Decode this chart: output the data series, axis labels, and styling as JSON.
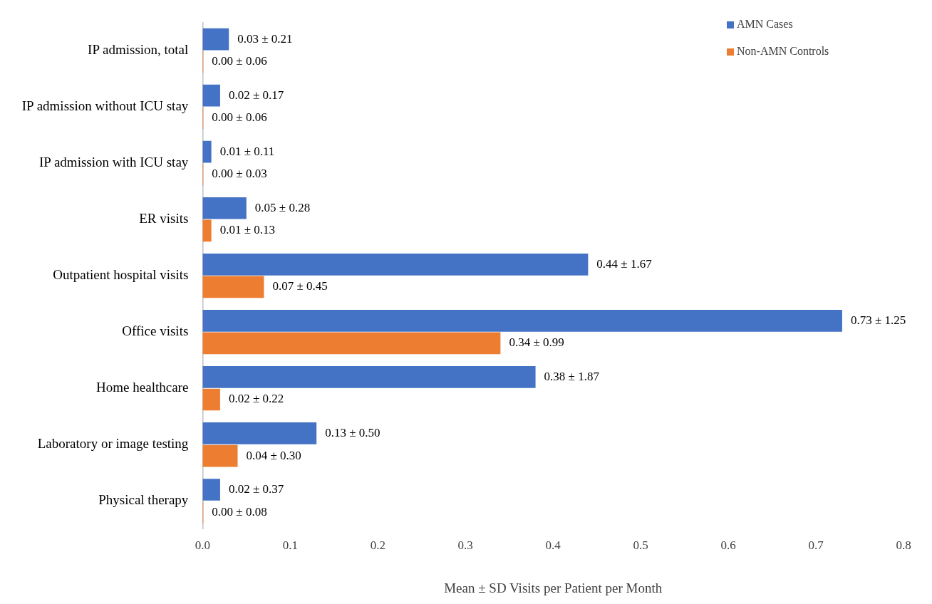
{
  "chart_data": {
    "type": "bar",
    "orientation": "horizontal",
    "xlabel": "Mean ± SD Visits per Patient per Month",
    "categories": [
      "IP admission, total",
      "IP admission without ICU stay",
      "IP admission with ICU stay",
      "ER visits",
      "Outpatient hospital visits",
      "Office visits",
      "Home healthcare",
      "Laboratory or image testing",
      "Physical therapy"
    ],
    "series": [
      {
        "name": "AMN Cases",
        "color": "#4472c4",
        "values": [
          0.03,
          0.02,
          0.01,
          0.05,
          0.44,
          0.73,
          0.38,
          0.13,
          0.02
        ],
        "value_labels": [
          "0.03 ± 0.21",
          "0.02 ± 0.17",
          "0.01 ± 0.11",
          "0.05 ± 0.28",
          "0.44 ± 1.67",
          "0.73 ± 1.25",
          "0.38 ± 1.87",
          "0.13 ± 0.50",
          "0.02 ± 0.37"
        ]
      },
      {
        "name": "Non-AMN Controls",
        "color": "#ed7d31",
        "values": [
          0,
          0,
          0,
          0.01,
          0.07,
          0.34,
          0.02,
          0.04,
          0
        ],
        "value_labels": [
          "0.00 ± 0.06",
          "0.00 ± 0.06",
          "0.00 ± 0.03",
          "0.01 ± 0.13",
          "0.07 ± 0.45",
          "0.34 ± 0.99",
          "0.02 ± 0.22",
          "0.04 ± 0.30",
          "0.00 ± 0.08"
        ]
      }
    ],
    "xlim": [
      0,
      0.8
    ],
    "xticks": [
      {
        "value": 0,
        "label": "0.0"
      },
      {
        "value": 0.1,
        "label": "0.1"
      },
      {
        "value": 0.2,
        "label": "0.2"
      },
      {
        "value": 0.3,
        "label": "0.3"
      },
      {
        "value": 0.4,
        "label": "0.4"
      },
      {
        "value": 0.5,
        "label": "0.5"
      },
      {
        "value": 0.6,
        "label": "0.6"
      },
      {
        "value": 0.7,
        "label": "0.7"
      },
      {
        "value": 0.8,
        "label": "0.8"
      }
    ],
    "grid": false,
    "legend": "top right"
  }
}
